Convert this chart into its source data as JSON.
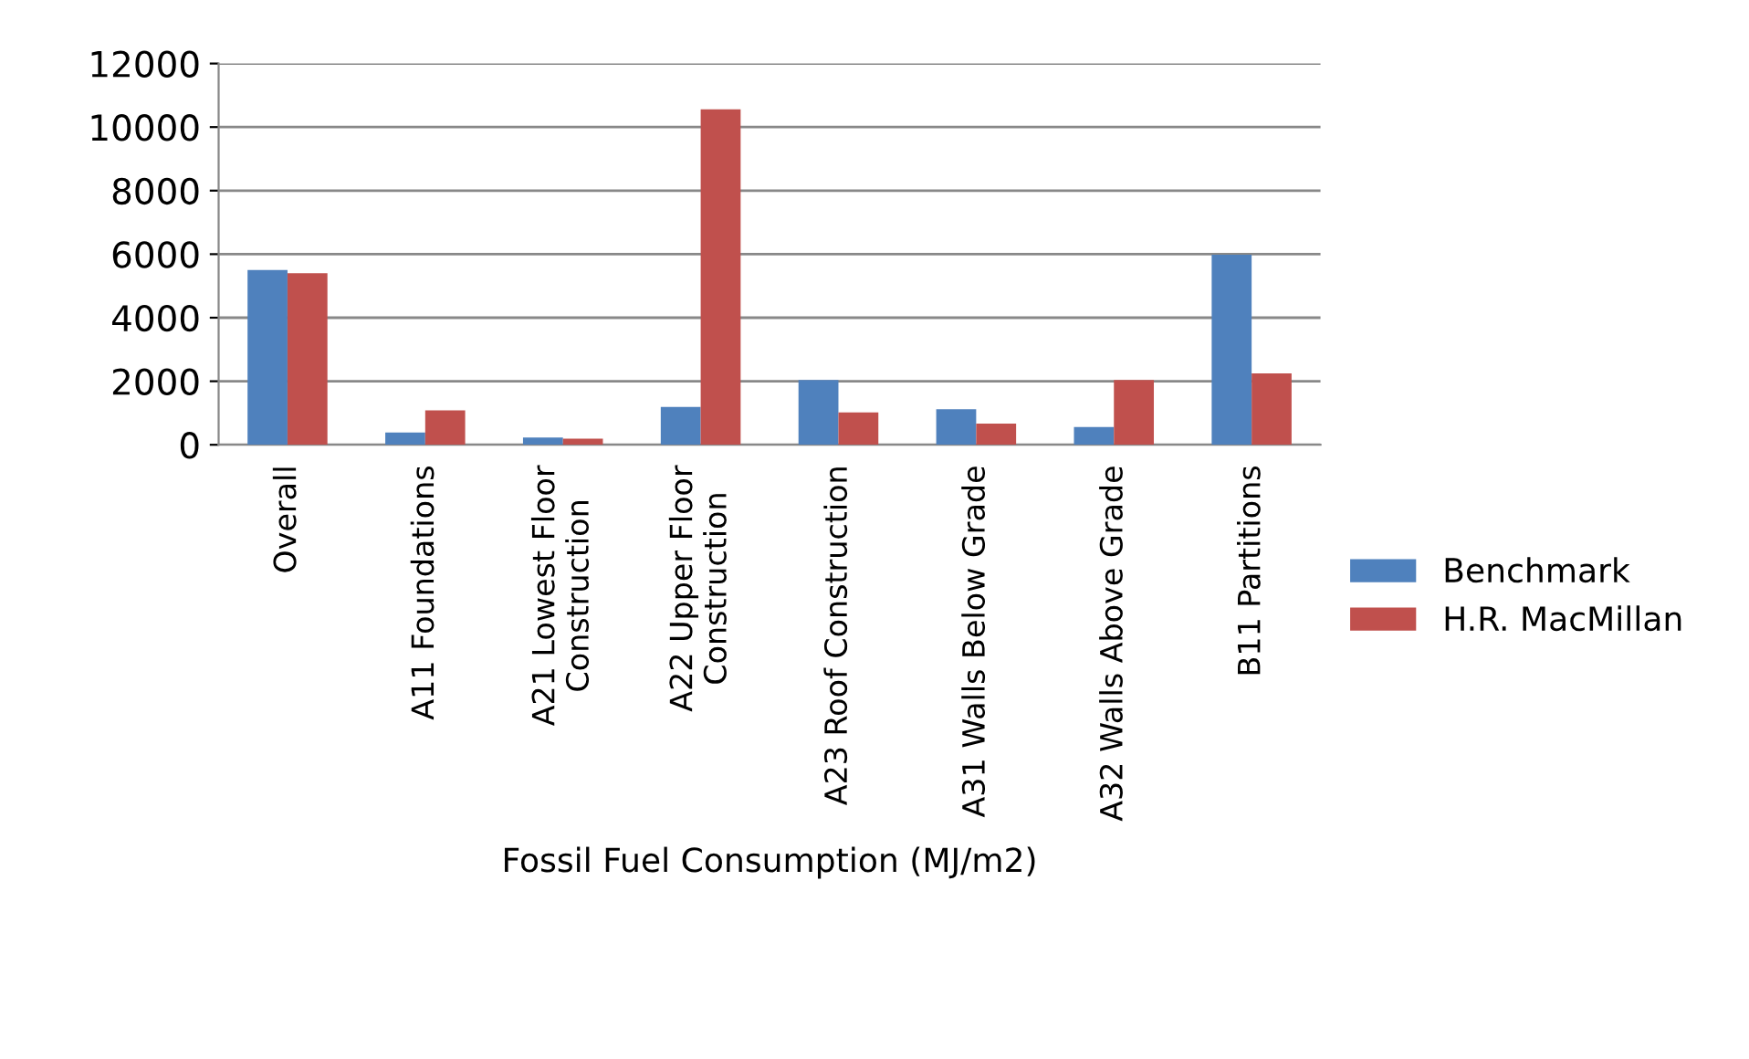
{
  "chart_data": {
    "type": "bar",
    "categories": [
      "Overall",
      "A11 Foundations",
      "A21 Lowest Floor\nConstruction",
      "A22 Upper Floor\nConstruction",
      "A23 Roof Construction",
      "A31 Walls Below Grade",
      "A32 Walls Above Grade",
      "B11 Partitions"
    ],
    "xlabel": "Fossil Fuel Consumption (MJ/m2)",
    "series": [
      {
        "name": "Benchmark",
        "color": "#4f81bd",
        "values": [
          5500,
          390,
          230,
          1190,
          2040,
          1120,
          560,
          5980
        ]
      },
      {
        "name": "H.R. MacMillan",
        "color": "#c0504d",
        "values": [
          5400,
          1080,
          190,
          10560,
          1020,
          670,
          2040,
          2250
        ]
      }
    ],
    "ylim": [
      0,
      12000
    ],
    "yticks": [
      0,
      2000,
      4000,
      6000,
      8000,
      10000,
      12000
    ],
    "grid": "y",
    "legend": "right"
  }
}
